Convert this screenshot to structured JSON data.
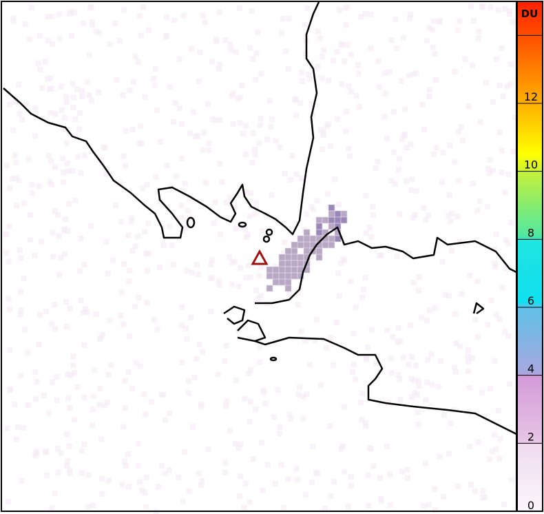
{
  "colorbar": {
    "unit": "DU",
    "ticks": [
      "0",
      "2",
      "4",
      "6",
      "8",
      "10",
      "12"
    ],
    "range": [
      0,
      15
    ],
    "colors": [
      "#fbf3fb",
      "#e8c8e8",
      "#a0a0e0",
      "#10e0f0",
      "#80f080",
      "#ffff00",
      "#ff8000",
      "#ff2000"
    ]
  },
  "map": {
    "background": "#ffffff",
    "coastline_color": "#000000",
    "volcano_marker": {
      "icon": "triangle-icon",
      "color": "#a01010"
    }
  }
}
